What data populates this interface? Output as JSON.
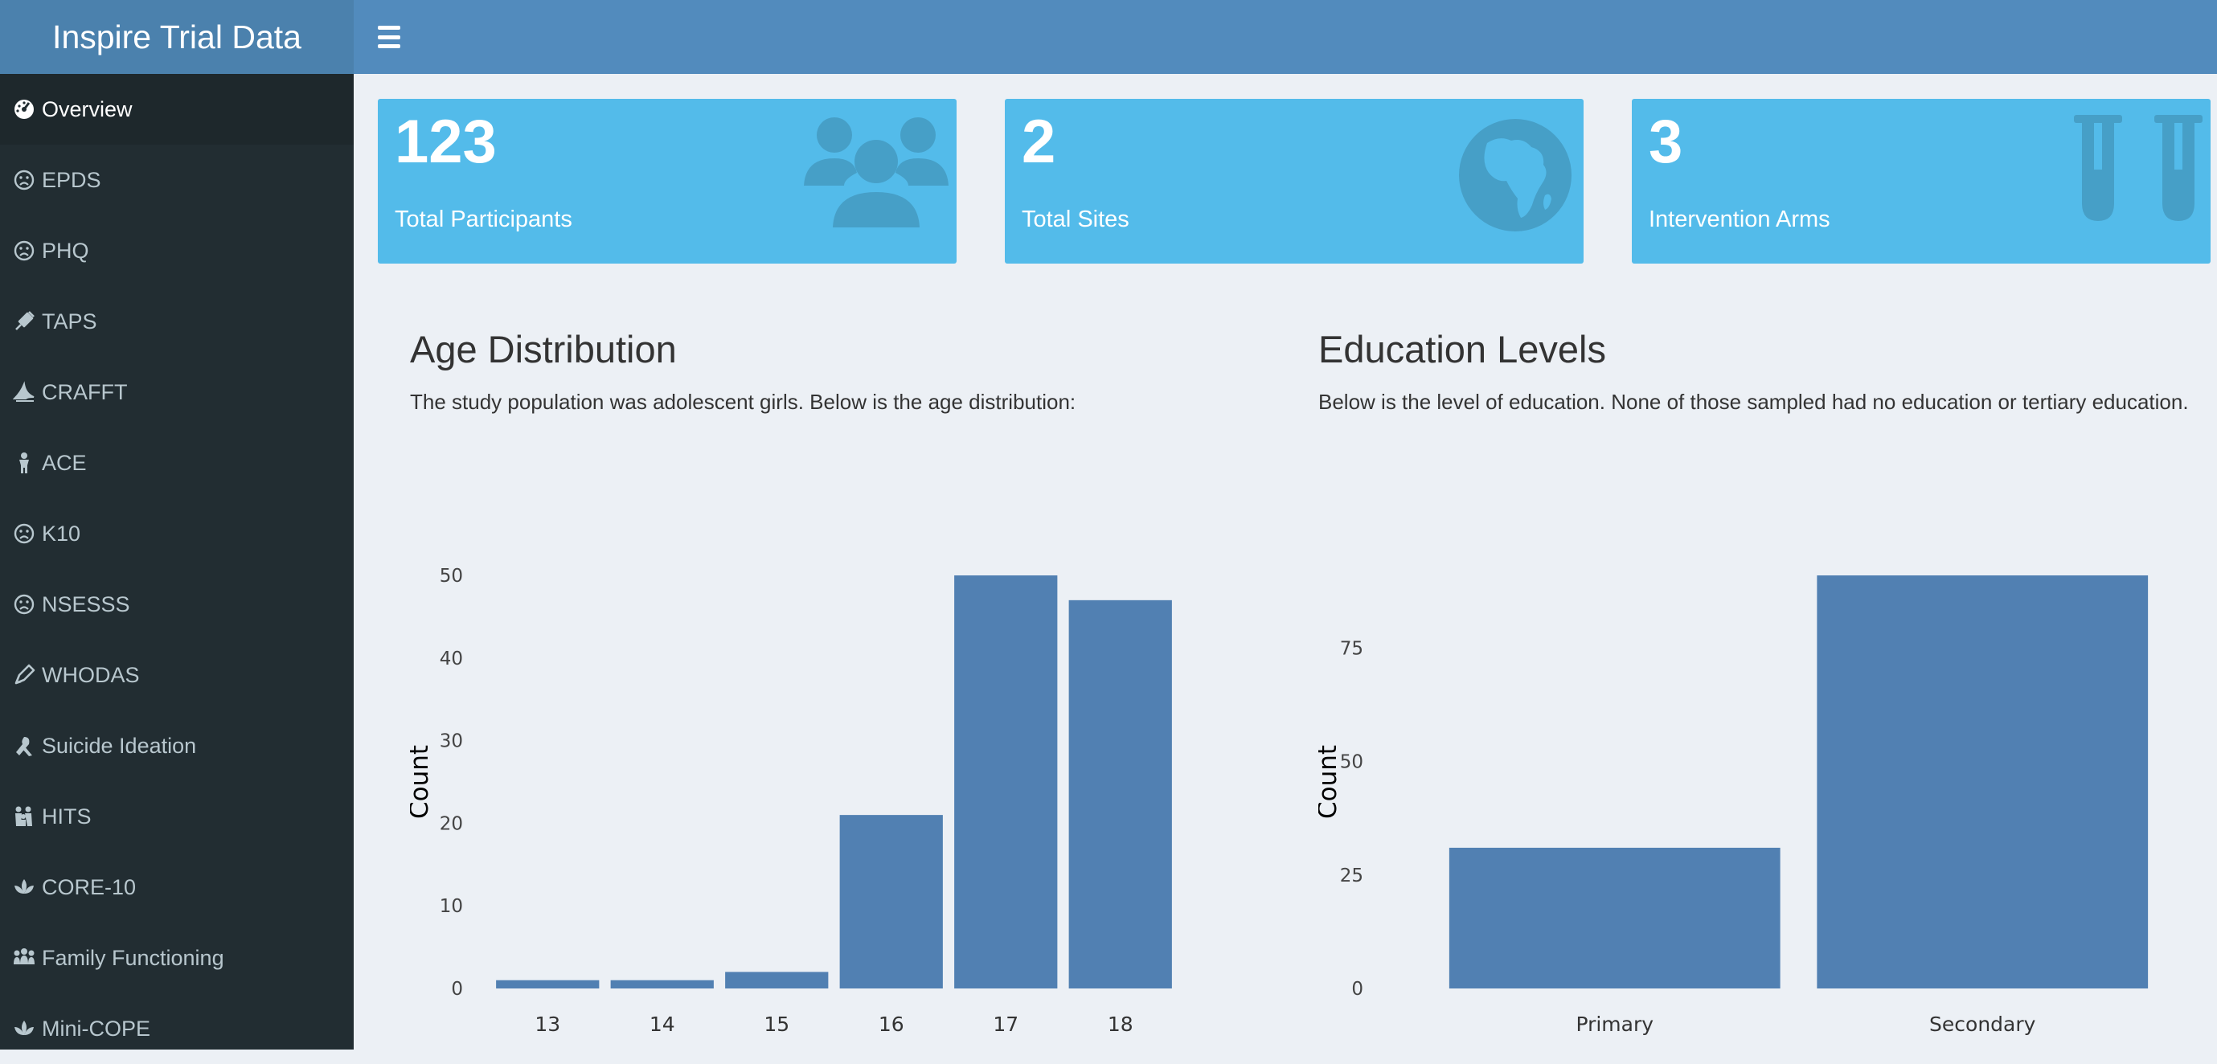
{
  "app": {
    "title": "Inspire Trial Data"
  },
  "sidebar": {
    "items": [
      {
        "label": "Overview",
        "icon": "dashboard-icon"
      },
      {
        "label": "EPDS",
        "icon": "frown-icon"
      },
      {
        "label": "PHQ",
        "icon": "frown-icon"
      },
      {
        "label": "TAPS",
        "icon": "syringe-icon"
      },
      {
        "label": "CRAFFT",
        "icon": "cannabis-icon"
      },
      {
        "label": "ACE",
        "icon": "child-icon"
      },
      {
        "label": "K10",
        "icon": "frown-icon"
      },
      {
        "label": "NSESSS",
        "icon": "frown-icon"
      },
      {
        "label": "WHODAS",
        "icon": "pen-icon"
      },
      {
        "label": "Suicide Ideation",
        "icon": "ribbon-icon"
      },
      {
        "label": "HITS",
        "icon": "family-icon"
      },
      {
        "label": "CORE-10",
        "icon": "lotus-icon"
      },
      {
        "label": "Family Functioning",
        "icon": "people-group-icon"
      },
      {
        "label": "Mini-COPE",
        "icon": "lotus-icon"
      }
    ]
  },
  "value_boxes": [
    {
      "value": "123",
      "label": "Total Participants",
      "icon": "users-icon"
    },
    {
      "value": "2",
      "label": "Total Sites",
      "icon": "globe-africa-icon"
    },
    {
      "value": "3",
      "label": "Intervention Arms",
      "icon": "vials-icon"
    }
  ],
  "panels": {
    "age": {
      "title": "Age Distribution",
      "description": "The study population was adolescent girls. Below is the age distribution:"
    },
    "education": {
      "title": "Education Levels",
      "description": "Below is the level of education. None of those sampled had no education or tertiary education."
    }
  },
  "chart_data": [
    {
      "type": "bar",
      "categories": [
        "13",
        "14",
        "15",
        "16",
        "17",
        "18"
      ],
      "values": [
        1,
        1,
        2,
        21,
        50,
        47
      ],
      "ylabel": "Count",
      "ylim": [
        0,
        50
      ],
      "yticks": [
        0,
        10,
        20,
        30,
        40,
        50
      ],
      "bar_color": "#5180b2"
    },
    {
      "type": "bar",
      "categories": [
        "Primary",
        "Secondary"
      ],
      "values": [
        31,
        91
      ],
      "ylabel": "Count",
      "ylim": [
        0,
        91
      ],
      "yticks": [
        0,
        25,
        50,
        75
      ],
      "bar_color": "#5180b2"
    }
  ]
}
